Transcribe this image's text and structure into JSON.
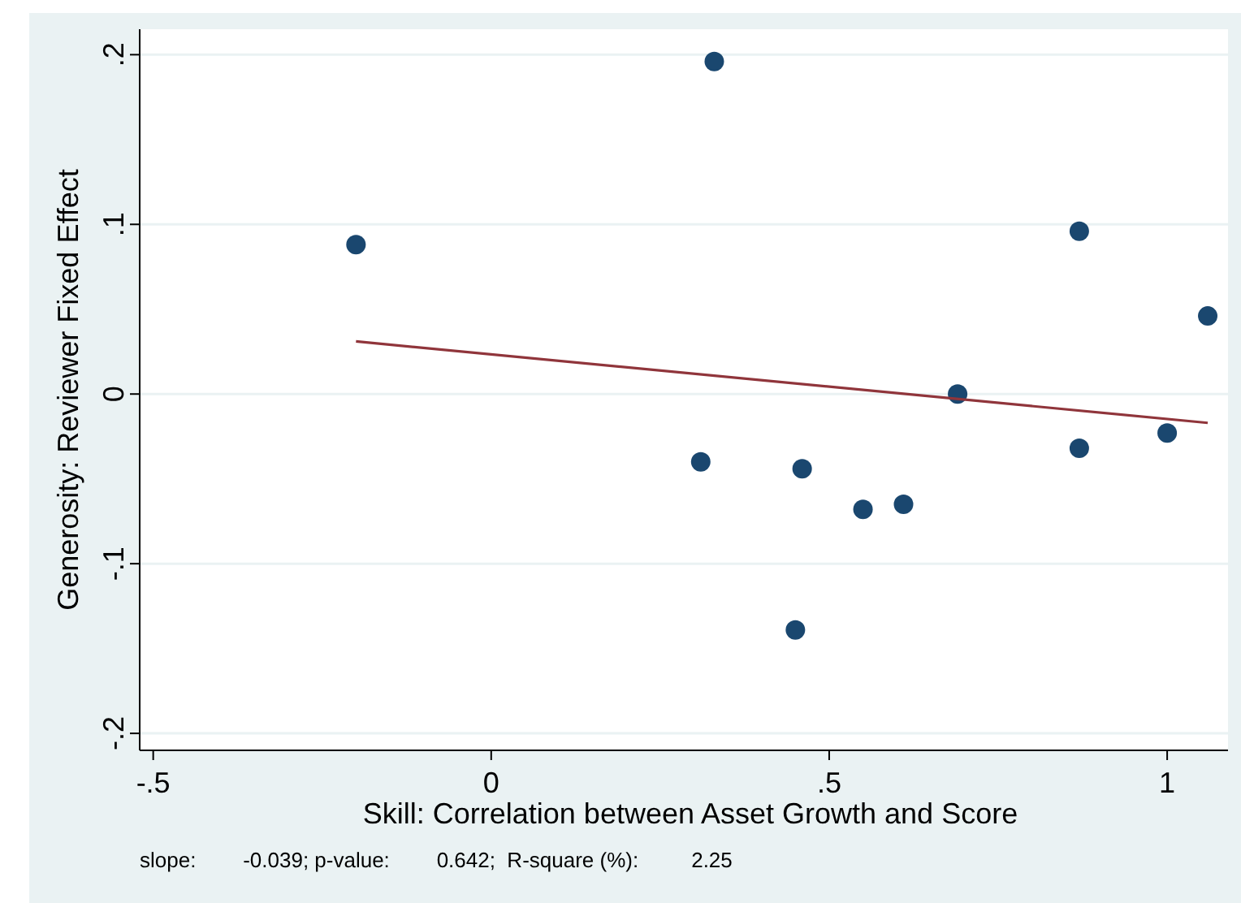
{
  "chart_data": {
    "type": "scatter",
    "xlabel": "Skill: Correlation between Asset Growth and Score",
    "ylabel": "Generosity: Reviewer Fixed Effect",
    "annotations": [
      "slope:        -0.039; p-value:        0.642;  R-square (%):         2.25"
    ],
    "xlim": [
      -0.52,
      1.09
    ],
    "ylim": [
      -0.21,
      0.215
    ],
    "xticks": [
      {
        "value": -0.5,
        "label": "-.5"
      },
      0,
      {
        "value": 0.5,
        "label": ".5"
      },
      1
    ],
    "yticks": [
      {
        "value": -0.2,
        "label": "-.2"
      },
      {
        "value": -0.1,
        "label": "-.1"
      },
      0,
      {
        "value": 0.1,
        "label": ".1"
      },
      {
        "value": 0.2,
        "label": ".2"
      }
    ],
    "grid": "y",
    "series": [
      {
        "marker": "circle",
        "color": "#1a476f",
        "x": [
          -0.2,
          0.33,
          0.31,
          0.46,
          0.55,
          0.61,
          0.69,
          0.87,
          0.87,
          1.0,
          1.06,
          0.45
        ],
        "values": [
          0.088,
          0.196,
          -0.04,
          -0.044,
          -0.068,
          -0.065,
          0.0,
          0.096,
          -0.032,
          -0.023,
          0.046,
          -0.139
        ]
      },
      {
        "type": "line",
        "color": "#90353b",
        "x": [
          -0.2,
          1.06
        ],
        "values": [
          0.031,
          -0.017
        ]
      }
    ]
  }
}
